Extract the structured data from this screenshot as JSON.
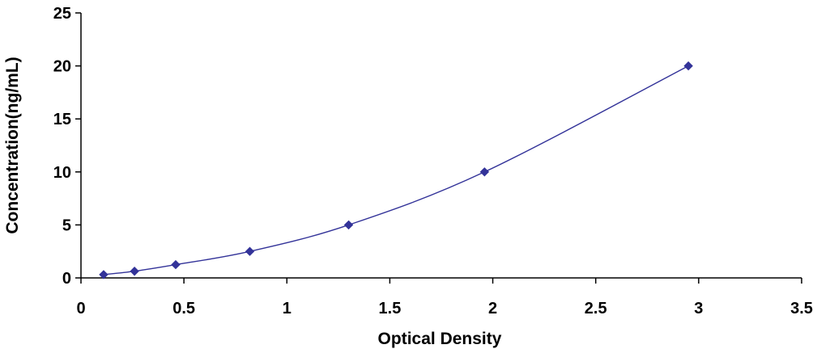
{
  "chart_data": {
    "type": "line",
    "title": "",
    "xlabel": "Optical Density",
    "ylabel": "Concentration(ng/mL)",
    "xlim": [
      0,
      3.5
    ],
    "ylim": [
      0,
      25
    ],
    "x_ticks": [
      0,
      0.5,
      1,
      1.5,
      2,
      2.5,
      3,
      3.5
    ],
    "y_ticks": [
      0,
      5,
      10,
      15,
      20,
      25
    ],
    "x_tick_labels": [
      "0",
      "0.5",
      "1",
      "1.5",
      "2",
      "2.5",
      "3",
      "3.5"
    ],
    "y_tick_labels": [
      "0",
      "5",
      "10",
      "15",
      "20",
      "25"
    ],
    "grid": false,
    "legend": "none",
    "series": [
      {
        "x": [
          0.11,
          0.26,
          0.46,
          0.82,
          1.3,
          1.96,
          2.95
        ],
        "y": [
          0.31,
          0.63,
          1.25,
          2.5,
          5,
          10,
          20
        ],
        "color": "#333399",
        "marker": "diamond",
        "smooth": true
      }
    ]
  }
}
